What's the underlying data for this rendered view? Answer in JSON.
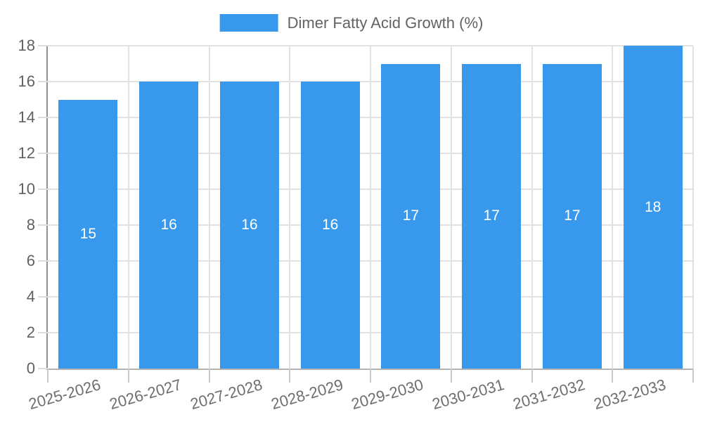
{
  "chart_data": {
    "type": "bar",
    "title": "Dimer Fatty Acid Growth (%)",
    "legend_label": "Dimer Fatty Acid Growth (%)",
    "categories": [
      "2025-2026",
      "2026-2027",
      "2027-2028",
      "2028-2029",
      "2029-2030",
      "2030-2031",
      "2031-2032",
      "2032-2033"
    ],
    "values": [
      15,
      16,
      16,
      16,
      17,
      17,
      17,
      18
    ],
    "value_labels": [
      "15",
      "16",
      "16",
      "16",
      "17",
      "17",
      "17",
      "18"
    ],
    "xlabel": "",
    "ylabel": "",
    "ylim": [
      0,
      18
    ],
    "ytick_step": 2,
    "ytick_labels": [
      "0",
      "2",
      "4",
      "6",
      "8",
      "10",
      "12",
      "14",
      "16",
      "18"
    ],
    "grid": true,
    "legend_position": "top-center",
    "value_label_position": "inside-middle",
    "x_label_rotation_deg": -16
  },
  "colors": {
    "bar": "#3899EC",
    "grid": "#E2E2E2",
    "axis_line": "#8F8F8F",
    "baseline": "#B3B3B3",
    "tick": "#C9C9C9",
    "y_tick_mark": "#DCDCDC",
    "y_label_text": "#5F6163",
    "x_label_text": "#6E6E6E",
    "legend_text": "#636363",
    "value_label_text": "#FFFFFF",
    "background": "#FFFFFF"
  }
}
